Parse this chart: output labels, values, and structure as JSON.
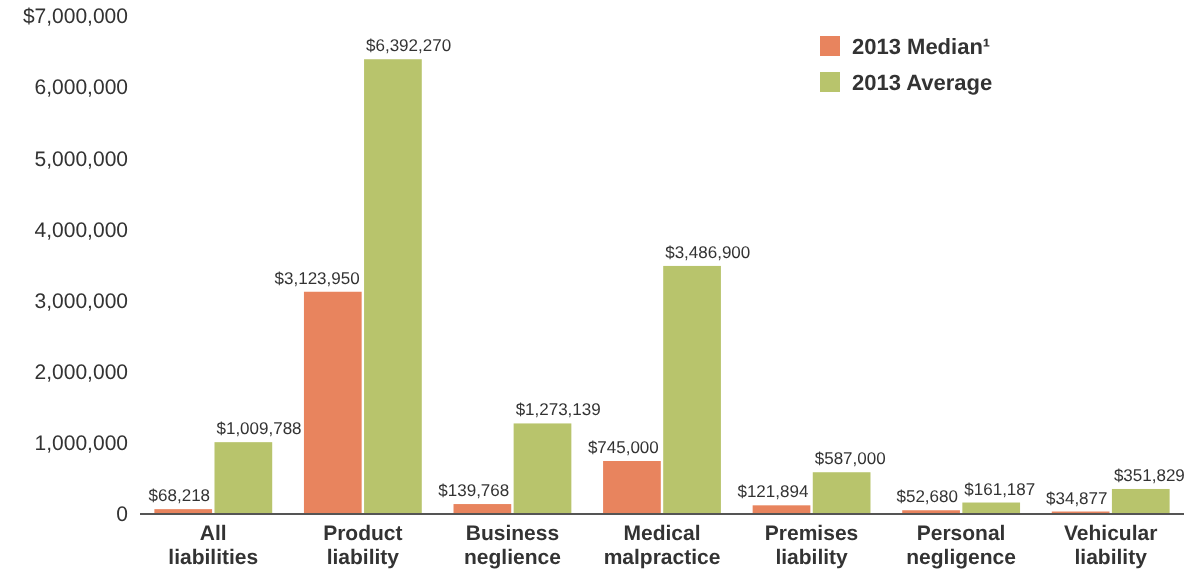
{
  "chart_data": {
    "type": "bar",
    "categories": [
      "All liabilities",
      "Product liability",
      "Business neglience",
      "Medical malpractice",
      "Premises liability",
      "Personal negligence",
      "Vehicular liability"
    ],
    "series": [
      {
        "name": "2013 Median¹",
        "color": "#e8845e",
        "values": [
          68218,
          3123950,
          139768,
          745000,
          121894,
          52680,
          34877
        ],
        "value_labels": [
          "$68,218",
          "$3,123,950",
          "$139,768",
          "$745,000",
          "$121,894",
          "$52,680",
          "$34,877"
        ]
      },
      {
        "name": "2013 Average",
        "color": "#b8c46c",
        "values": [
          1009788,
          6392270,
          1273139,
          3486900,
          587000,
          161187,
          351829
        ],
        "value_labels": [
          "$1,009,788",
          "$6,392,270",
          "$1,273,139",
          "$3,486,900",
          "$587,000",
          "$161,187",
          "$351,829"
        ]
      }
    ],
    "ylim": [
      0,
      7000000
    ],
    "yticks": [
      {
        "value": 0,
        "label": "0"
      },
      {
        "value": 1000000,
        "label": "1,000,000"
      },
      {
        "value": 2000000,
        "label": "2,000,000"
      },
      {
        "value": 3000000,
        "label": "3,000,000"
      },
      {
        "value": 4000000,
        "label": "4,000,000"
      },
      {
        "value": 5000000,
        "label": "5,000,000"
      },
      {
        "value": 6000000,
        "label": "6,000,000"
      },
      {
        "value": 7000000,
        "label": "$7,000,000"
      }
    ],
    "legend": "top right"
  }
}
